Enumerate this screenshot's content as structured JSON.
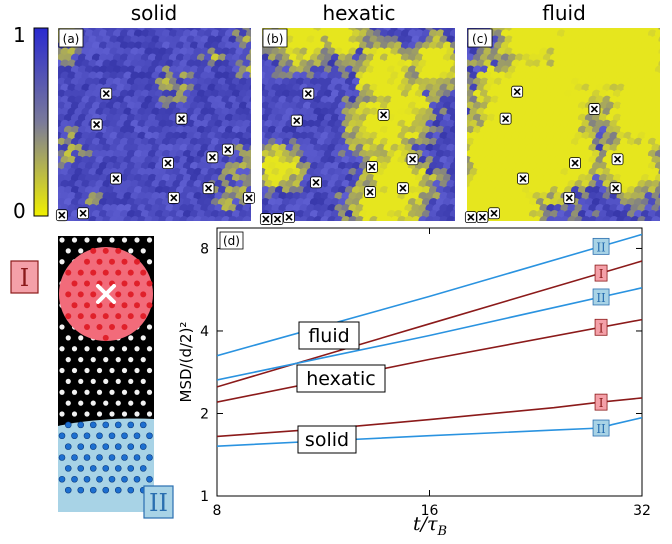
{
  "colorbar": {
    "max_label": "1",
    "min_label": "0",
    "colors": {
      "high": "#2a2aa8",
      "low": "#e6e61e"
    }
  },
  "panels": [
    {
      "tag": "(a)",
      "title": "solid",
      "yellow_fraction": 0.15,
      "markers": [
        [
          0.25,
          0.34
        ],
        [
          0.2,
          0.5
        ],
        [
          0.64,
          0.47
        ],
        [
          0.3,
          0.78
        ],
        [
          0.57,
          0.7
        ],
        [
          0.8,
          0.67
        ],
        [
          0.88,
          0.63
        ],
        [
          0.6,
          0.88
        ],
        [
          0.78,
          0.83
        ],
        [
          0.13,
          0.96
        ],
        [
          0.02,
          0.97
        ],
        [
          0.99,
          0.88
        ]
      ]
    },
    {
      "tag": "(b)",
      "title": "hexatic",
      "yellow_fraction": 0.4,
      "markers": [
        [
          0.24,
          0.34
        ],
        [
          0.18,
          0.48
        ],
        [
          0.63,
          0.45
        ],
        [
          0.28,
          0.8
        ],
        [
          0.57,
          0.72
        ],
        [
          0.78,
          0.68
        ],
        [
          0.56,
          0.85
        ],
        [
          0.73,
          0.83
        ],
        [
          0.14,
          0.98
        ],
        [
          0.08,
          0.99
        ],
        [
          0.02,
          0.99
        ]
      ]
    },
    {
      "tag": "(c)",
      "title": "fluid",
      "yellow_fraction": 0.62,
      "markers": [
        [
          0.26,
          0.33
        ],
        [
          0.2,
          0.47
        ],
        [
          0.66,
          0.42
        ],
        [
          0.29,
          0.78
        ],
        [
          0.56,
          0.7
        ],
        [
          0.78,
          0.68
        ],
        [
          0.53,
          0.88
        ],
        [
          0.77,
          0.83
        ],
        [
          0.14,
          0.96
        ],
        [
          0.08,
          0.98
        ],
        [
          0.02,
          0.98
        ]
      ]
    }
  ],
  "schematic": {
    "region_I_label": "I",
    "region_II_label": "II",
    "colors": {
      "region_I": "#f26b7a",
      "region_II": "#a8d3e6",
      "particle_I": "#e0202a",
      "particle_II": "#1d6fd0",
      "background": "#000000"
    }
  },
  "chart_data": {
    "type": "line",
    "panel_tag": "(d)",
    "xlabel": "t/τB",
    "ylabel": "MSD/(d/2)²",
    "xscale": "log",
    "yscale": "log",
    "xlim": [
      8,
      32
    ],
    "ylim": [
      1,
      9.5
    ],
    "xticks": [
      8,
      16,
      32
    ],
    "yticks": [
      1,
      2,
      4,
      8
    ],
    "annotations": [
      "fluid",
      "hexatic",
      "solid"
    ],
    "series": [
      {
        "name": "II",
        "color": "#2a93e0",
        "x": [
          8,
          16,
          32
        ],
        "y": [
          3.25,
          5.35,
          9.0
        ]
      },
      {
        "name": "I",
        "color": "#8b1a1a",
        "x": [
          8,
          16,
          32
        ],
        "y": [
          2.5,
          4.25,
          7.2
        ]
      },
      {
        "name": "II",
        "color": "#2a93e0",
        "x": [
          8,
          16,
          32
        ],
        "y": [
          2.65,
          3.85,
          5.75
        ]
      },
      {
        "name": "I",
        "color": "#8b1a1a",
        "x": [
          8,
          16,
          32
        ],
        "y": [
          2.2,
          3.15,
          4.4
        ]
      },
      {
        "name": "I",
        "color": "#8b1a1a",
        "x": [
          8,
          12,
          16,
          24,
          28,
          32
        ],
        "y": [
          1.65,
          1.78,
          1.9,
          2.1,
          2.2,
          2.28
        ]
      },
      {
        "name": "II",
        "color": "#2a93e0",
        "x": [
          8,
          12,
          16,
          24,
          28,
          29,
          32
        ],
        "y": [
          1.52,
          1.6,
          1.66,
          1.74,
          1.77,
          1.82,
          1.93
        ]
      }
    ]
  }
}
